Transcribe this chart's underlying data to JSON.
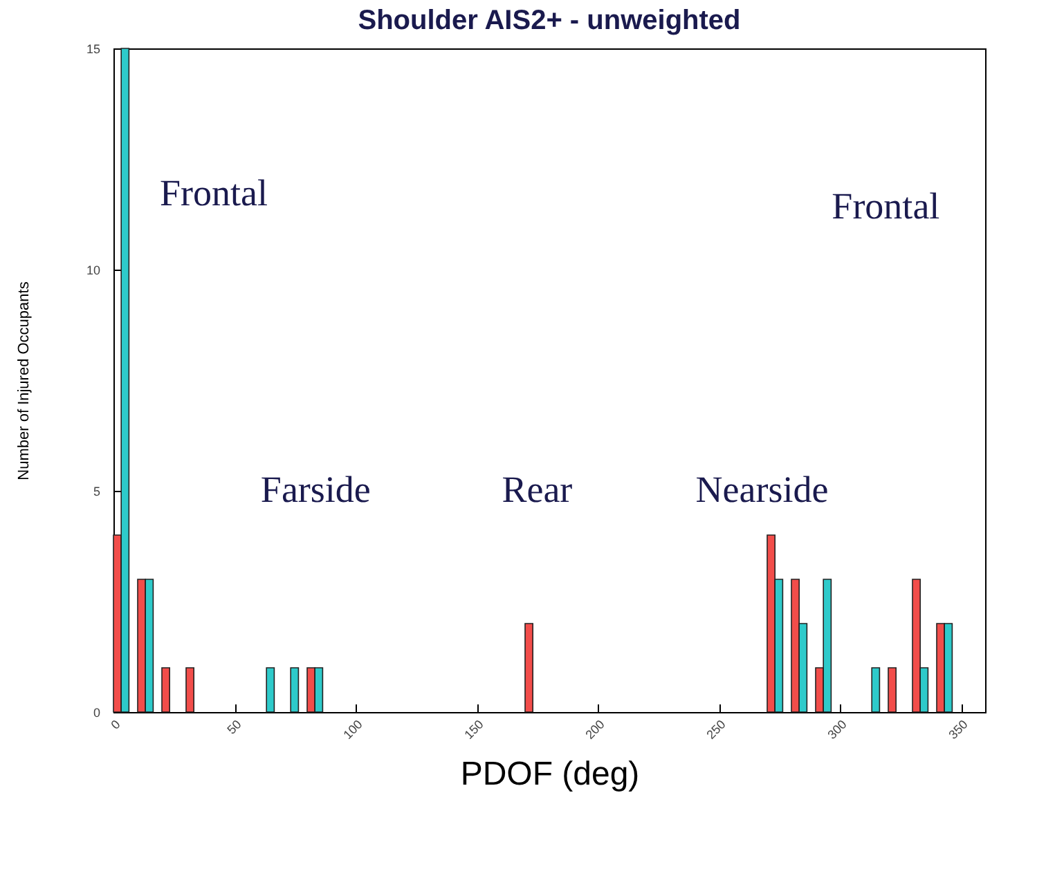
{
  "chart_data": {
    "type": "bar",
    "title": "Shoulder AIS2+ - unweighted",
    "xlabel": "PDOF (deg)",
    "ylabel": "Number of Injured Occupants",
    "x": [
      0,
      10,
      20,
      30,
      40,
      50,
      60,
      70,
      80,
      90,
      100,
      110,
      120,
      130,
      140,
      150,
      160,
      170,
      180,
      190,
      200,
      210,
      220,
      230,
      240,
      250,
      260,
      270,
      280,
      290,
      300,
      310,
      320,
      330,
      340
    ],
    "series": [
      {
        "color": "#f24d4a",
        "values": [
          4,
          3,
          1,
          1,
          null,
          null,
          null,
          null,
          1,
          null,
          null,
          null,
          null,
          null,
          null,
          null,
          null,
          2,
          null,
          null,
          null,
          null,
          null,
          null,
          null,
          null,
          null,
          4,
          3,
          1,
          null,
          null,
          1,
          3,
          2
        ]
      },
      {
        "color": "#2ecaca",
        "values": [
          15,
          3,
          null,
          null,
          null,
          null,
          1,
          1,
          1,
          null,
          null,
          null,
          null,
          null,
          null,
          null,
          null,
          null,
          null,
          null,
          null,
          null,
          null,
          null,
          null,
          null,
          null,
          3,
          2,
          3,
          null,
          1,
          null,
          1,
          2
        ]
      }
    ],
    "xlim": [
      0,
      360
    ],
    "xticks": [
      0,
      50,
      100,
      150,
      200,
      250,
      300,
      350
    ],
    "ylim": [
      0,
      15
    ],
    "yticks": [
      0,
      5,
      10,
      15
    ],
    "grid": false,
    "annotations": [
      "Frontal",
      "Farside",
      "Rear",
      "Nearside",
      "Frontal"
    ]
  }
}
